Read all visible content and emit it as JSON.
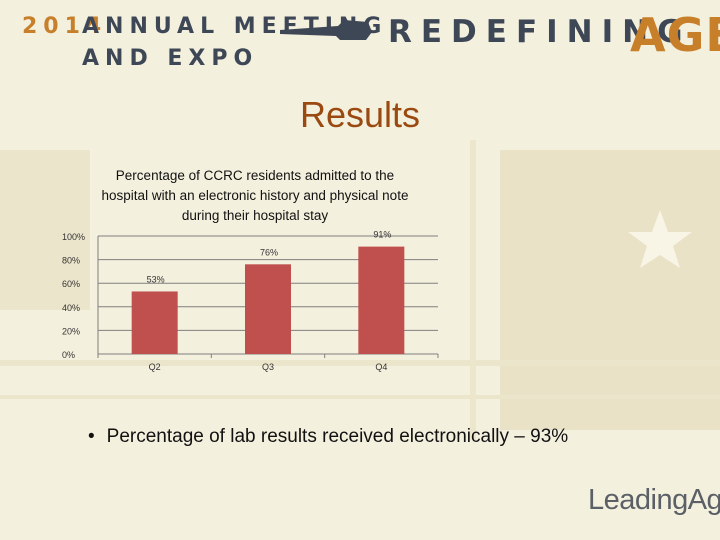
{
  "header": {
    "year": "2014",
    "line1": "ANNUAL MEETING",
    "line2": "AND EXPO",
    "tagline": "REDEFINING",
    "tagline_accent": "AGE"
  },
  "slide": {
    "title": "Results",
    "bullet": "Percentage of lab results received electronically – 93%"
  },
  "logo": {
    "text": "LeadingAge"
  },
  "colors": {
    "bar": "#c0504d",
    "title": "#9a4a10",
    "accent": "#c77f2a",
    "navy": "#3e4756"
  },
  "chart_data": {
    "type": "bar",
    "title": "Percentage of CCRC residents admitted to the hospital with an electronic history and physical note during their hospital stay",
    "categories": [
      "Q2",
      "Q3",
      "Q4"
    ],
    "values": [
      53,
      76,
      91
    ],
    "data_labels": [
      "53%",
      "76%",
      "91%"
    ],
    "y_ticks": [
      "0%",
      "20%",
      "40%",
      "60%",
      "80%",
      "100%"
    ],
    "y_tick_values": [
      0,
      20,
      40,
      60,
      80,
      100
    ],
    "ylim": [
      0,
      100
    ],
    "xlabel": "",
    "ylabel": "",
    "grid": true
  }
}
